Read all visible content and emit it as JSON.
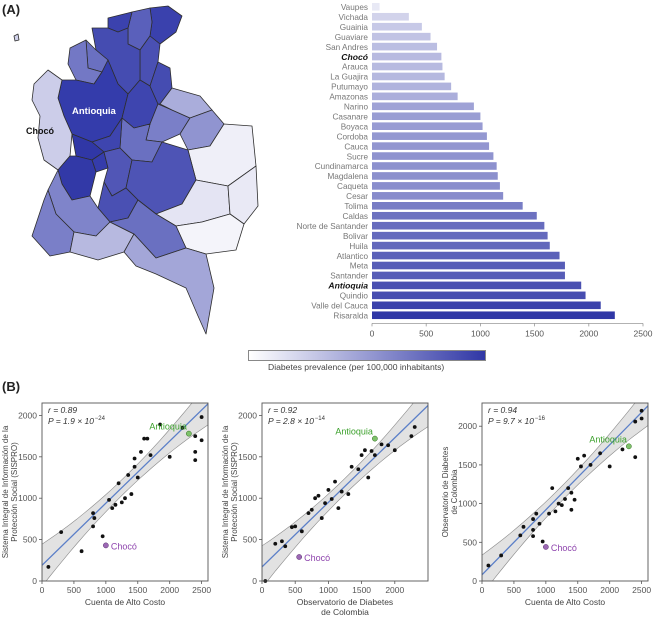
{
  "panel_a_label": "(A)",
  "panel_b_label": "(B)",
  "map": {
    "labels": {
      "antioquia": "Antioquia",
      "choco": "Chocó"
    },
    "colors": {
      "outline": "#2e2e2e",
      "low": "#f4f4fa",
      "high": "#3037a6"
    }
  },
  "colorbar": {
    "label": "Diabetes prevalence (per 100,000 inhabitants)",
    "colors": [
      "#ffffff",
      "#3037a6"
    ]
  },
  "chart_data": [
    {
      "type": "bar",
      "orientation": "horizontal",
      "title": "",
      "categories": [
        "Vaupes",
        "Vichada",
        "Guainia",
        "Guaviare",
        "San Andres",
        "Chocó",
        "Arauca",
        "La Guajira",
        "Putumayo",
        "Amazonas",
        "Narino",
        "Casanare",
        "Boyaca",
        "Cordoba",
        "Cauca",
        "Sucre",
        "Cundinamarca",
        "Magdalena",
        "Caqueta",
        "Cesar",
        "Tolima",
        "Caldas",
        "Norte de Santander",
        "Bolivar",
        "Huila",
        "Atlantico",
        "Meta",
        "Santander",
        "Antioquia",
        "Quindio",
        "Valle del Cauca",
        "Risaralda"
      ],
      "highlighted": [
        "Chocó",
        "Antioquia"
      ],
      "values": [
        70,
        340,
        460,
        540,
        600,
        640,
        650,
        670,
        730,
        790,
        940,
        1000,
        1020,
        1060,
        1080,
        1120,
        1150,
        1160,
        1180,
        1210,
        1390,
        1520,
        1590,
        1620,
        1640,
        1730,
        1780,
        1780,
        1930,
        1970,
        2110,
        2240
      ],
      "xlim": [
        0,
        2500
      ],
      "xticks": [
        "0",
        "500",
        "1000",
        "1500",
        "2000",
        "2500"
      ],
      "xlabel": "",
      "ylabel": ""
    },
    {
      "type": "scatter",
      "xlabel": "Cuenta de Alto Costo",
      "ylabel": [
        "Sistema Integral de Información de la",
        "Protección Social (SISPRO)"
      ],
      "xlim": [
        0,
        2600
      ],
      "ylim": [
        0,
        2150
      ],
      "xticks": [
        "0",
        "500",
        "1000",
        "1500",
        "2000",
        "2500"
      ],
      "yticks": [
        "0",
        "500",
        "1000",
        "1500",
        "2000"
      ],
      "stat_r": "r = 0.89",
      "stat_p": "P = 1.9 × 10",
      "stat_p_exp": "−24",
      "fit": {
        "slope": 0.75,
        "intercept": 190
      },
      "highlight": {
        "antioquia": {
          "label": "Antioquia",
          "x": 2300,
          "y": 1780
        },
        "choco": {
          "label": "Chocó",
          "x": 1000,
          "y": 430
        }
      },
      "points": [
        [
          100,
          170
        ],
        [
          300,
          590
        ],
        [
          620,
          360
        ],
        [
          800,
          820
        ],
        [
          820,
          760
        ],
        [
          800,
          660
        ],
        [
          950,
          540
        ],
        [
          1050,
          980
        ],
        [
          1100,
          880
        ],
        [
          1150,
          920
        ],
        [
          1200,
          1180
        ],
        [
          1250,
          950
        ],
        [
          1300,
          1000
        ],
        [
          1350,
          1280
        ],
        [
          1400,
          1050
        ],
        [
          1450,
          1480
        ],
        [
          1450,
          1380
        ],
        [
          1500,
          1250
        ],
        [
          1550,
          1560
        ],
        [
          1600,
          1720
        ],
        [
          1650,
          1720
        ],
        [
          1700,
          1520
        ],
        [
          1850,
          1890
        ],
        [
          2000,
          1500
        ],
        [
          2200,
          1850
        ],
        [
          2400,
          1750
        ],
        [
          2400,
          1560
        ],
        [
          2400,
          1460
        ],
        [
          2500,
          1980
        ],
        [
          2500,
          1700
        ]
      ]
    },
    {
      "type": "scatter",
      "xlabel": [
        "Observatorio de Diabetes",
        "de Colombia"
      ],
      "ylabel": [
        "Sistema Integral de Información de la",
        "Protección Social (SISPRO)"
      ],
      "xlim": [
        0,
        2500
      ],
      "ylim": [
        0,
        2150
      ],
      "xticks": [
        "0",
        "500",
        "1000",
        "1500",
        "2000"
      ],
      "yticks": [
        "0",
        "500",
        "1000",
        "1500",
        "2000"
      ],
      "stat_r": "r = 0.92",
      "stat_p": "P = 2.8 × 10",
      "stat_p_exp": "−14",
      "fit": {
        "slope": 0.78,
        "intercept": 170
      },
      "highlight": {
        "antioquia": {
          "label": "Antioquia",
          "x": 1700,
          "y": 1720
        },
        "choco": {
          "label": "Chocó",
          "x": 560,
          "y": 290
        }
      },
      "points": [
        [
          50,
          0
        ],
        [
          200,
          450
        ],
        [
          300,
          480
        ],
        [
          350,
          420
        ],
        [
          450,
          650
        ],
        [
          500,
          660
        ],
        [
          600,
          600
        ],
        [
          700,
          820
        ],
        [
          750,
          860
        ],
        [
          800,
          1000
        ],
        [
          850,
          1030
        ],
        [
          900,
          760
        ],
        [
          950,
          940
        ],
        [
          1000,
          1100
        ],
        [
          1050,
          990
        ],
        [
          1100,
          1200
        ],
        [
          1150,
          880
        ],
        [
          1200,
          1080
        ],
        [
          1300,
          1050
        ],
        [
          1350,
          1380
        ],
        [
          1450,
          1350
        ],
        [
          1500,
          1520
        ],
        [
          1550,
          1580
        ],
        [
          1600,
          1250
        ],
        [
          1650,
          1570
        ],
        [
          1700,
          1520
        ],
        [
          1800,
          1650
        ],
        [
          1900,
          1640
        ],
        [
          2000,
          1580
        ],
        [
          2250,
          1750
        ],
        [
          2300,
          1860
        ]
      ]
    },
    {
      "type": "scatter",
      "xlabel": "Cuenta de Alto Costo",
      "ylabel": [
        "Observatorio de Diabetes",
        "de Colombia"
      ],
      "xlim": [
        0,
        2600
      ],
      "ylim": [
        0,
        2300
      ],
      "xticks": [
        "0",
        "500",
        "1000",
        "1500",
        "2000",
        "2500"
      ],
      "yticks": [
        "0",
        "500",
        "1000",
        "1500",
        "2000"
      ],
      "stat_r": "r = 0.94",
      "stat_p": "P = 9.7 × 10",
      "stat_p_exp": "−16",
      "fit": {
        "slope": 0.84,
        "intercept": 80
      },
      "highlight": {
        "antioquia": {
          "label": "Antioquia",
          "x": 2300,
          "y": 1740
        },
        "choco": {
          "label": "Chocó",
          "x": 1000,
          "y": 440
        }
      },
      "points": [
        [
          100,
          200
        ],
        [
          300,
          330
        ],
        [
          600,
          590
        ],
        [
          650,
          700
        ],
        [
          800,
          800
        ],
        [
          800,
          660
        ],
        [
          800,
          580
        ],
        [
          850,
          870
        ],
        [
          900,
          740
        ],
        [
          950,
          510
        ],
        [
          1050,
          870
        ],
        [
          1100,
          1200
        ],
        [
          1150,
          900
        ],
        [
          1200,
          1000
        ],
        [
          1250,
          980
        ],
        [
          1300,
          1060
        ],
        [
          1350,
          1200
        ],
        [
          1400,
          920
        ],
        [
          1400,
          1140
        ],
        [
          1450,
          1050
        ],
        [
          1500,
          1580
        ],
        [
          1550,
          1480
        ],
        [
          1600,
          1620
        ],
        [
          1700,
          1500
        ],
        [
          1850,
          1650
        ],
        [
          2000,
          1480
        ],
        [
          2200,
          1700
        ],
        [
          2400,
          2060
        ],
        [
          2400,
          1600
        ],
        [
          2500,
          2200
        ],
        [
          2500,
          2100
        ]
      ]
    }
  ]
}
